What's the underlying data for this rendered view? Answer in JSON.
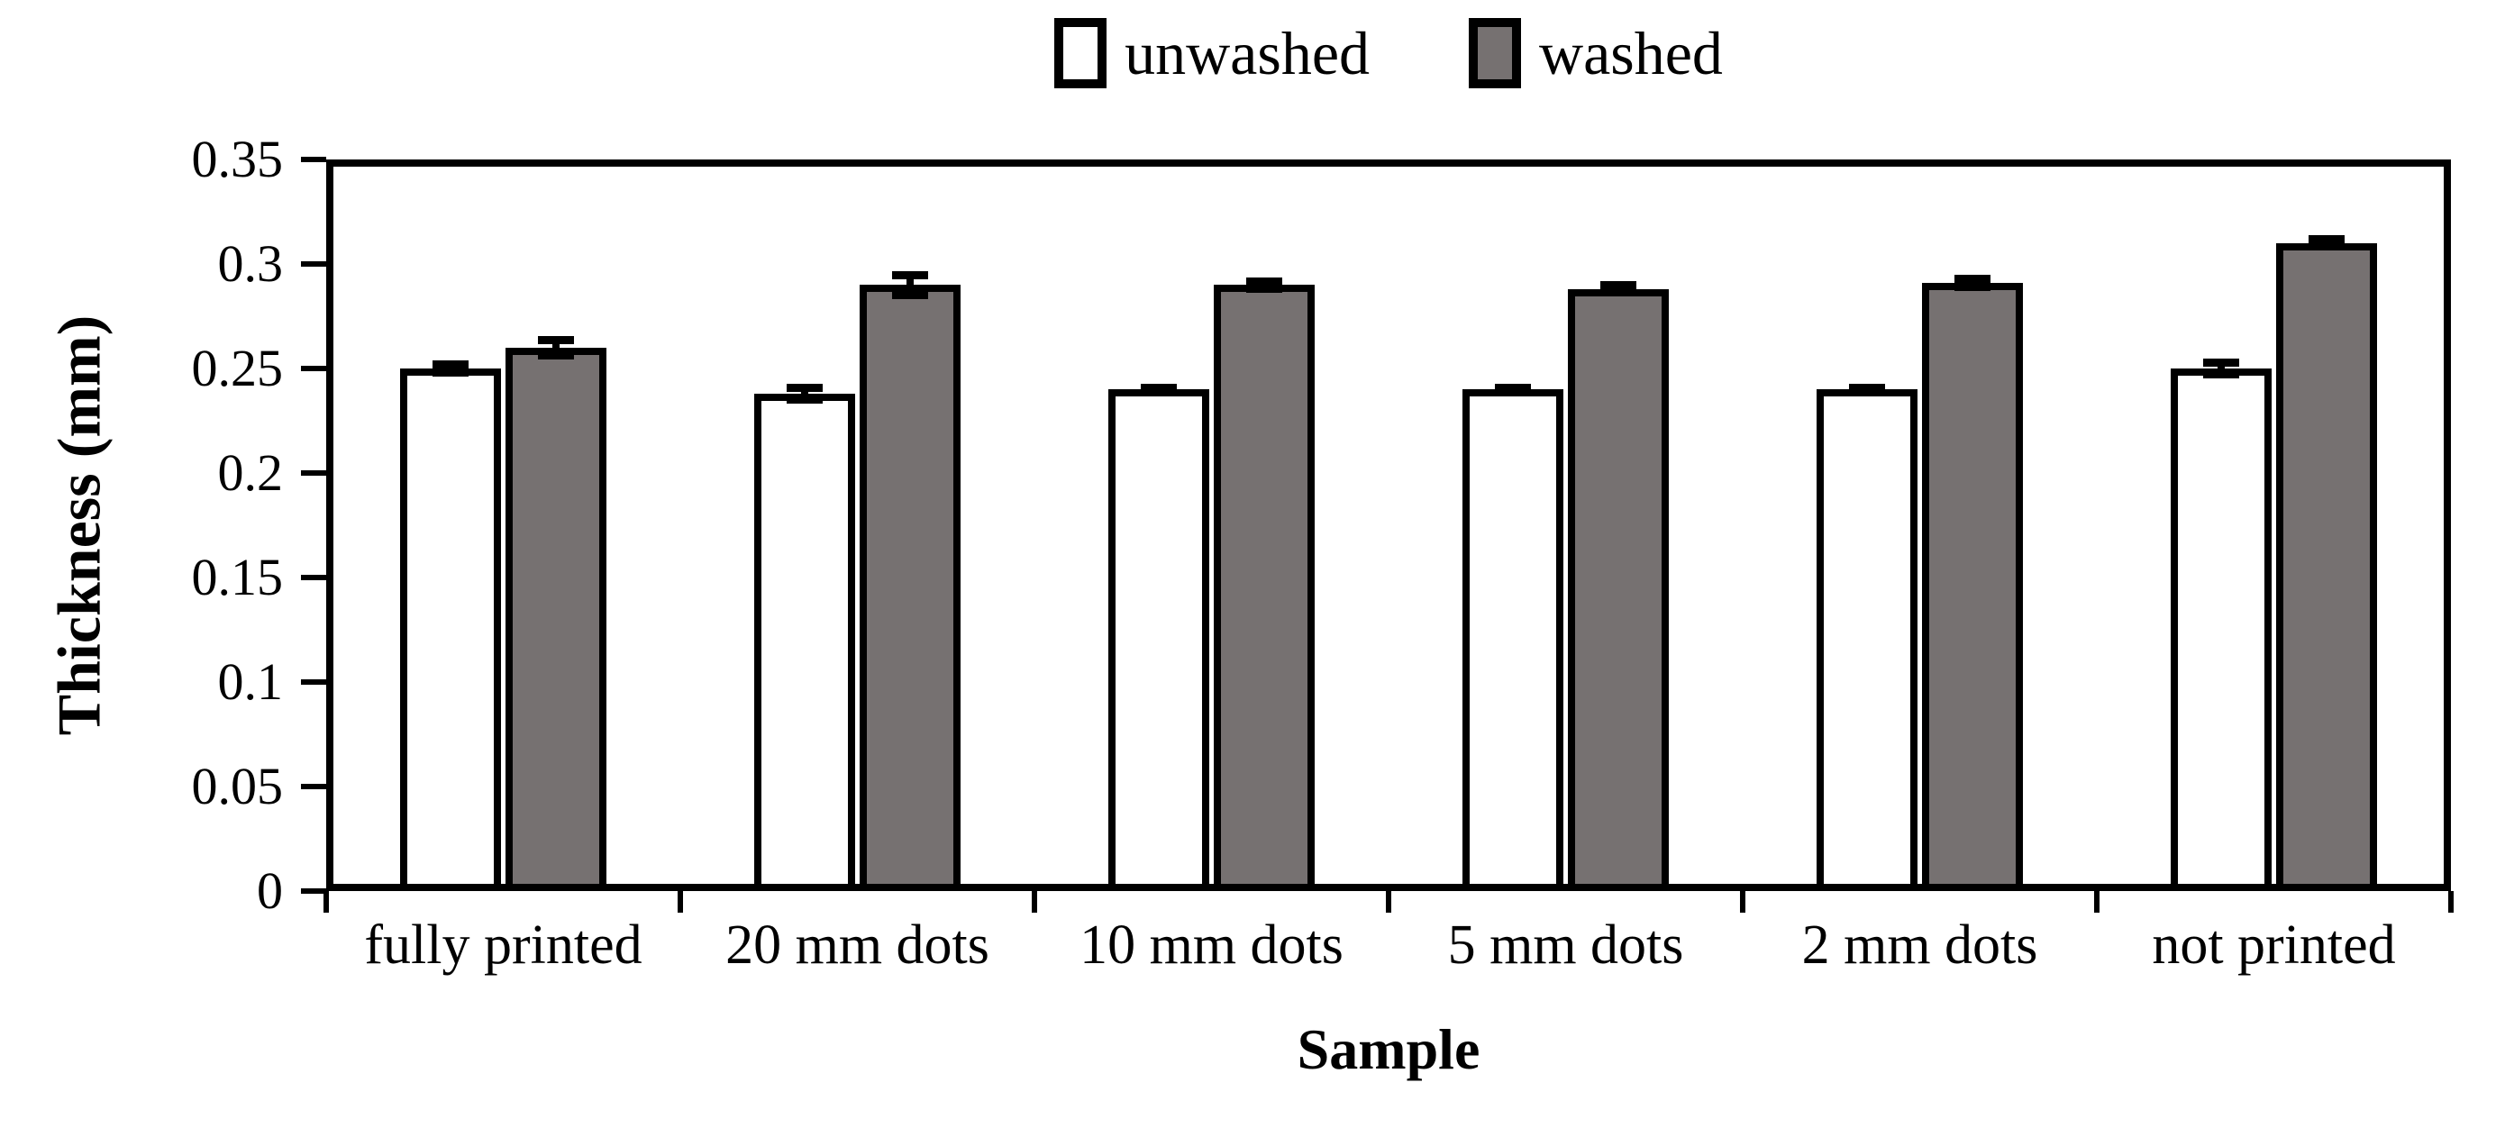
{
  "chart_data": {
    "type": "bar",
    "title": "",
    "xlabel": "Sample",
    "ylabel": "Thickness (mm)",
    "categories": [
      "fully printed",
      "20 mm dots",
      "10 mm dots",
      "5 mm dots",
      "2 mm dots",
      "not printed"
    ],
    "series": [
      {
        "name": "unwashed",
        "fill": "#ffffff",
        "values": [
          0.25,
          0.238,
          0.24,
          0.24,
          0.24,
          0.25
        ],
        "errors": [
          0.002,
          0.003,
          0.001,
          0.001,
          0.001,
          0.003
        ]
      },
      {
        "name": "washed",
        "fill": "#767171",
        "values": [
          0.26,
          0.29,
          0.29,
          0.288,
          0.291,
          0.31
        ],
        "errors": [
          0.004,
          0.005,
          0.002,
          0.002,
          0.002,
          0.002
        ]
      }
    ],
    "ylim": [
      0,
      0.35
    ],
    "ytick_step": 0.05,
    "ytick_labels": [
      "0",
      "0.05",
      "0.1",
      "0.15",
      "0.2",
      "0.25",
      "0.3",
      "0.35"
    ],
    "legend_position": "top-center",
    "grid": false,
    "bar_border_color": "#000000",
    "error_bar_color": "#000000",
    "frame_color": "#000000",
    "background_color": "#ffffff"
  }
}
